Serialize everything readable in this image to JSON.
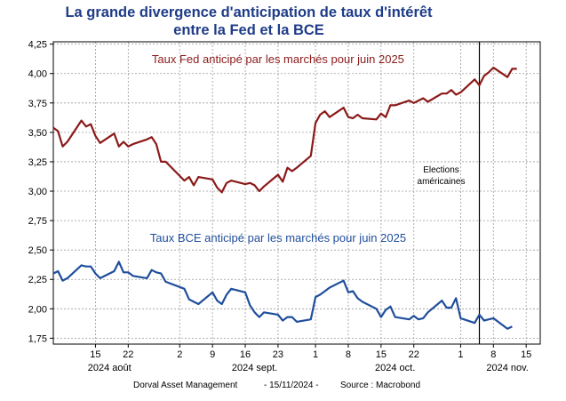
{
  "title_line1": "La grande divergence d'anticipation de taux d'intérêt",
  "title_line2": "entre la Fed et la BCE",
  "footer": {
    "left": "Dorval Asset Management",
    "mid": "-  15/11/2024  -",
    "right": "Source : Macrobond"
  },
  "chart_data": {
    "type": "line",
    "title": "La grande divergence d'anticipation de taux d'intérêt entre la Fed et la BCE",
    "ylim": [
      1.7,
      4.27
    ],
    "yticks": [
      "1,75",
      "2,00",
      "2,25",
      "2,50",
      "2,75",
      "3,00",
      "3,25",
      "3,50",
      "3,75",
      "4,00",
      "4,25"
    ],
    "ytick_values": [
      1.75,
      2.0,
      2.25,
      2.5,
      2.75,
      3.0,
      3.25,
      3.5,
      3.75,
      4.0,
      4.25
    ],
    "xlim": [
      "2024-08-06",
      "2024-11-18"
    ],
    "xticks": [
      {
        "date": "2024-08-15",
        "label": "15"
      },
      {
        "date": "2024-08-22",
        "label": "22"
      },
      {
        "date": "2024-09-02",
        "label": "2"
      },
      {
        "date": "2024-09-09",
        "label": "9"
      },
      {
        "date": "2024-09-16",
        "label": "16"
      },
      {
        "date": "2024-09-23",
        "label": "23"
      },
      {
        "date": "2024-10-01",
        "label": "1"
      },
      {
        "date": "2024-10-08",
        "label": "8"
      },
      {
        "date": "2024-10-15",
        "label": "15"
      },
      {
        "date": "2024-10-22",
        "label": "22"
      },
      {
        "date": "2024-11-01",
        "label": "1"
      },
      {
        "date": "2024-11-08",
        "label": "8"
      },
      {
        "date": "2024-11-15",
        "label": "15"
      }
    ],
    "month_labels": [
      {
        "date": "2024-08-18",
        "label": "2024 août"
      },
      {
        "date": "2024-09-18",
        "label": "2024 sept."
      },
      {
        "date": "2024-10-18",
        "label": "2024 oct."
      },
      {
        "date": "2024-11-11",
        "label": "2024 nov."
      }
    ],
    "grid": true,
    "vline": {
      "date": "2024-11-05",
      "label_line1": "Elections",
      "label_line2": "américaines"
    },
    "series": [
      {
        "name": "Taux Fed anticipé par les marchés pour juin 2025",
        "color": "#8b1a1a",
        "label_anchor": {
          "date": "2024-09-23",
          "y": 4.09
        },
        "points": [
          [
            "2024-08-06",
            3.54
          ],
          [
            "2024-08-07",
            3.51
          ],
          [
            "2024-08-08",
            3.38
          ],
          [
            "2024-08-09",
            3.42
          ],
          [
            "2024-08-12",
            3.6
          ],
          [
            "2024-08-13",
            3.55
          ],
          [
            "2024-08-14",
            3.57
          ],
          [
            "2024-08-15",
            3.47
          ],
          [
            "2024-08-16",
            3.41
          ],
          [
            "2024-08-19",
            3.49
          ],
          [
            "2024-08-20",
            3.38
          ],
          [
            "2024-08-21",
            3.42
          ],
          [
            "2024-08-22",
            3.38
          ],
          [
            "2024-08-23",
            3.4
          ],
          [
            "2024-08-26",
            3.44
          ],
          [
            "2024-08-27",
            3.46
          ],
          [
            "2024-08-28",
            3.4
          ],
          [
            "2024-08-29",
            3.25
          ],
          [
            "2024-08-30",
            3.25
          ],
          [
            "2024-09-03",
            3.09
          ],
          [
            "2024-09-04",
            3.12
          ],
          [
            "2024-09-05",
            3.05
          ],
          [
            "2024-09-06",
            3.12
          ],
          [
            "2024-09-09",
            3.1
          ],
          [
            "2024-09-10",
            3.03
          ],
          [
            "2024-09-11",
            2.99
          ],
          [
            "2024-09-12",
            3.07
          ],
          [
            "2024-09-13",
            3.09
          ],
          [
            "2024-09-16",
            3.06
          ],
          [
            "2024-09-17",
            3.07
          ],
          [
            "2024-09-18",
            3.05
          ],
          [
            "2024-09-19",
            3.0
          ],
          [
            "2024-09-20",
            3.04
          ],
          [
            "2024-09-23",
            3.14
          ],
          [
            "2024-09-24",
            3.08
          ],
          [
            "2024-09-25",
            3.2
          ],
          [
            "2024-09-26",
            3.17
          ],
          [
            "2024-09-27",
            3.2
          ],
          [
            "2024-09-30",
            3.3
          ],
          [
            "2024-10-01",
            3.58
          ],
          [
            "2024-10-02",
            3.65
          ],
          [
            "2024-10-03",
            3.68
          ],
          [
            "2024-10-04",
            3.63
          ],
          [
            "2024-10-07",
            3.71
          ],
          [
            "2024-10-08",
            3.63
          ],
          [
            "2024-10-09",
            3.62
          ],
          [
            "2024-10-10",
            3.65
          ],
          [
            "2024-10-11",
            3.62
          ],
          [
            "2024-10-14",
            3.61
          ],
          [
            "2024-10-15",
            3.66
          ],
          [
            "2024-10-16",
            3.63
          ],
          [
            "2024-10-17",
            3.73
          ],
          [
            "2024-10-18",
            3.73
          ],
          [
            "2024-10-21",
            3.77
          ],
          [
            "2024-10-22",
            3.75
          ],
          [
            "2024-10-23",
            3.77
          ],
          [
            "2024-10-24",
            3.79
          ],
          [
            "2024-10-25",
            3.76
          ],
          [
            "2024-10-28",
            3.83
          ],
          [
            "2024-10-29",
            3.83
          ],
          [
            "2024-10-30",
            3.86
          ],
          [
            "2024-10-31",
            3.82
          ],
          [
            "2024-11-01",
            3.84
          ],
          [
            "2024-11-04",
            3.95
          ],
          [
            "2024-11-05",
            3.9
          ],
          [
            "2024-11-06",
            3.98
          ],
          [
            "2024-11-07",
            4.01
          ],
          [
            "2024-11-08",
            4.05
          ],
          [
            "2024-11-11",
            3.97
          ],
          [
            "2024-11-12",
            4.04
          ],
          [
            "2024-11-13",
            4.04
          ]
        ]
      },
      {
        "name": "Taux BCE anticipé par les marchés pour juin 2025",
        "color": "#1f4e9c",
        "label_anchor": {
          "date": "2024-09-23",
          "y": 2.57
        },
        "points": [
          [
            "2024-08-06",
            2.3
          ],
          [
            "2024-08-07",
            2.32
          ],
          [
            "2024-08-08",
            2.24
          ],
          [
            "2024-08-09",
            2.26
          ],
          [
            "2024-08-12",
            2.37
          ],
          [
            "2024-08-13",
            2.36
          ],
          [
            "2024-08-14",
            2.36
          ],
          [
            "2024-08-15",
            2.3
          ],
          [
            "2024-08-16",
            2.26
          ],
          [
            "2024-08-19",
            2.32
          ],
          [
            "2024-08-20",
            2.4
          ],
          [
            "2024-08-21",
            2.31
          ],
          [
            "2024-08-22",
            2.31
          ],
          [
            "2024-08-23",
            2.28
          ],
          [
            "2024-08-26",
            2.26
          ],
          [
            "2024-08-27",
            2.33
          ],
          [
            "2024-08-28",
            2.31
          ],
          [
            "2024-08-29",
            2.3
          ],
          [
            "2024-08-30",
            2.23
          ],
          [
            "2024-09-03",
            2.17
          ],
          [
            "2024-09-04",
            2.08
          ],
          [
            "2024-09-05",
            2.06
          ],
          [
            "2024-09-06",
            2.04
          ],
          [
            "2024-09-09",
            2.14
          ],
          [
            "2024-09-10",
            2.07
          ],
          [
            "2024-09-11",
            2.04
          ],
          [
            "2024-09-12",
            2.12
          ],
          [
            "2024-09-13",
            2.17
          ],
          [
            "2024-09-16",
            2.14
          ],
          [
            "2024-09-17",
            2.03
          ],
          [
            "2024-09-18",
            1.97
          ],
          [
            "2024-09-19",
            1.93
          ],
          [
            "2024-09-20",
            1.97
          ],
          [
            "2024-09-23",
            1.95
          ],
          [
            "2024-09-24",
            1.9
          ],
          [
            "2024-09-25",
            1.93
          ],
          [
            "2024-09-26",
            1.93
          ],
          [
            "2024-09-27",
            1.89
          ],
          [
            "2024-09-30",
            1.91
          ],
          [
            "2024-10-01",
            2.1
          ],
          [
            "2024-10-02",
            2.12
          ],
          [
            "2024-10-03",
            2.15
          ],
          [
            "2024-10-04",
            2.18
          ],
          [
            "2024-10-07",
            2.24
          ],
          [
            "2024-10-08",
            2.14
          ],
          [
            "2024-10-09",
            2.15
          ],
          [
            "2024-10-10",
            2.09
          ],
          [
            "2024-10-11",
            2.06
          ],
          [
            "2024-10-14",
            2.0
          ],
          [
            "2024-10-15",
            1.93
          ],
          [
            "2024-10-16",
            1.99
          ],
          [
            "2024-10-17",
            2.02
          ],
          [
            "2024-10-18",
            1.93
          ],
          [
            "2024-10-21",
            1.91
          ],
          [
            "2024-10-22",
            1.94
          ],
          [
            "2024-10-23",
            1.91
          ],
          [
            "2024-10-24",
            1.92
          ],
          [
            "2024-10-25",
            1.97
          ],
          [
            "2024-10-28",
            2.07
          ],
          [
            "2024-10-29",
            2.01
          ],
          [
            "2024-10-30",
            2.01
          ],
          [
            "2024-10-31",
            2.09
          ],
          [
            "2024-11-01",
            1.92
          ],
          [
            "2024-11-04",
            1.88
          ],
          [
            "2024-11-05",
            1.95
          ],
          [
            "2024-11-06",
            1.9
          ],
          [
            "2024-11-07",
            1.91
          ],
          [
            "2024-11-08",
            1.92
          ],
          [
            "2024-11-11",
            1.83
          ],
          [
            "2024-11-12",
            1.85
          ]
        ]
      }
    ]
  }
}
